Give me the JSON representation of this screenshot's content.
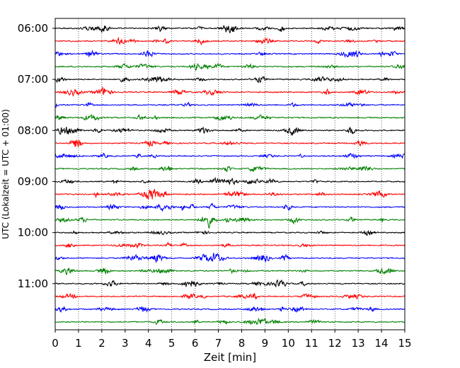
{
  "chart_data": {
    "type": "line",
    "title": "",
    "xlabel": "Zeit  [min]",
    "ylabel": "UTC (Lokalzeit = UTC + 01:00)",
    "xlim": [
      0,
      15
    ],
    "x_ticks": [
      "0",
      "1",
      "2",
      "3",
      "4",
      "5",
      "6",
      "7",
      "8",
      "9",
      "10",
      "11",
      "12",
      "13",
      "14",
      "15"
    ],
    "y_ticks": [
      "06:00",
      "07:00",
      "08:00",
      "09:00",
      "10:00",
      "11:00"
    ],
    "row_start": "06:00",
    "row_interval_minutes": 15,
    "row_count": 24,
    "row_colors": [
      "#000000",
      "#ff0000",
      "#0000ff",
      "#008000"
    ],
    "vertical_grid": "dotted",
    "legend": "none"
  }
}
